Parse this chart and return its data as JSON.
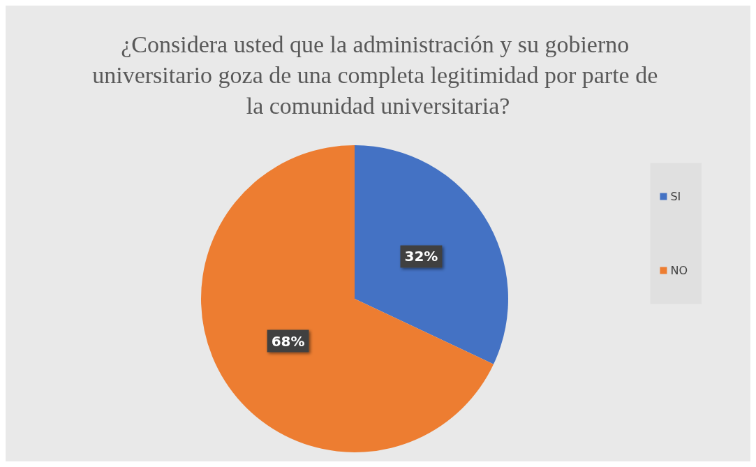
{
  "chart_data": {
    "type": "pie",
    "title": "¿Considera usted que la administración y su gobierno universitario goza de una completa legitimidad por parte de la comunidad universitaria?",
    "categories": [
      "SI",
      "NO"
    ],
    "values": [
      32,
      68
    ],
    "colors": [
      "#4472c4",
      "#ed7d31"
    ],
    "value_labels": [
      "32%",
      "68%"
    ],
    "legend": "right"
  }
}
